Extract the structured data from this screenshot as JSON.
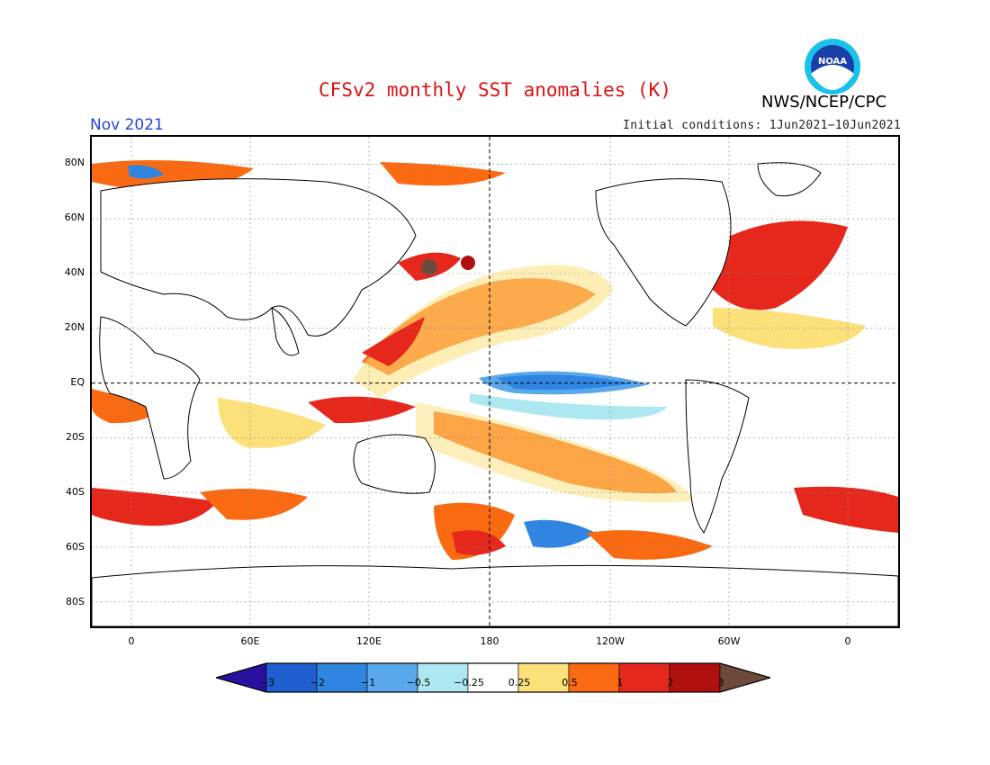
{
  "header": {
    "title": "CFSv2 monthly SST anomalies (K)",
    "title_color": "#dd1111",
    "month": "Nov 2021",
    "month_color": "#2244dd",
    "initial_conditions": "Initial conditions: 1Jun2021−10Jun2021",
    "agency": "NWS/NCEP/CPC",
    "logo_text": "NOAA"
  },
  "map": {
    "projection": "equirectangular",
    "lat_labels": [
      "80N",
      "60N",
      "40N",
      "20N",
      "EQ",
      "20S",
      "40S",
      "60S",
      "80S"
    ],
    "lon_labels": [
      "0",
      "60E",
      "120E",
      "180",
      "120W",
      "60W",
      "0"
    ],
    "dashed_lines": [
      "EQ",
      "180"
    ]
  },
  "legend": {
    "labels": [
      "−3",
      "−2",
      "−1",
      "−0.5",
      "−0.25",
      "0.25",
      "0.5",
      "1",
      "2",
      "3"
    ],
    "colors": [
      "#2a0fa0",
      "#1f5fd0",
      "#2f85e0",
      "#5aa8ec",
      "#ade8f0",
      "#ffffff",
      "#fce07a",
      "#fa6a12",
      "#e6281c",
      "#b01010",
      "#6e4a3c"
    ]
  }
}
